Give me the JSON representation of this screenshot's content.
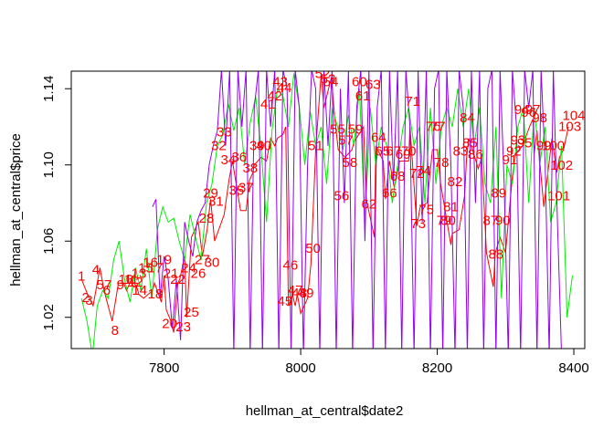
{
  "chart_data": {
    "type": "line",
    "xlabel": "hellman_at_central$date2",
    "ylabel": "hellman_at_central$price",
    "xlim": [
      7664,
      8416
    ],
    "ylim": [
      1.0036,
      1.1492
    ],
    "x_ticks": [
      7800,
      8000,
      8200,
      8400
    ],
    "y_ticks": [
      1.02,
      1.06,
      1.1,
      1.14
    ],
    "y_tick_labels": [
      "1.02",
      "1.06",
      "1.10",
      "1.14"
    ],
    "grid": false,
    "legend": "none",
    "series": [
      {
        "color": "#ff0000",
        "x": [
          7679,
          7688,
          7696,
          7706,
          7712,
          7724,
          7733,
          7741,
          7745,
          7752,
          7760,
          7763,
          7770,
          7783,
          7786,
          7796,
          7800,
          7803,
          7810,
          7814,
          7820,
          7823,
          7830,
          7833,
          7840,
          7850,
          7856,
          7863,
          7868,
          7874,
          7888,
          7895,
          7900,
          7912,
          7920,
          7925,
          7930,
          7932,
          7942,
          7950,
          7956,
          7962,
          7966,
          7974,
          7978,
          7982,
          7988,
          7992,
          7995,
          8000,
          8010,
          8015,
          8022,
          8030,
          8034,
          8045,
          8050,
          8055,
          8065,
          8075,
          8078,
          8092,
          8096,
          8108,
          8110,
          8121,
          8124,
          8130,
          8137,
          8145,
          8158,
          8160,
          8170,
          8175,
          8185,
          8193,
          8200,
          8205,
          8220,
          8222,
          8232,
          8240,
          8243,
          8246,
          8255,
          8260,
          8265,
          8272,
          8282,
          8285,
          8292,
          8300,
          8310,
          8315,
          8320,
          8325,
          8335,
          8340,
          8342,
          8346,
          8356,
          8368,
          8375,
          8379,
          8385,
          8392
        ],
        "values": [
          1.04,
          1.032,
          1.026,
          1.046,
          1.034,
          1.018,
          1.038,
          1.038,
          1.034,
          1.04,
          1.036,
          1.032,
          1.03,
          1.034,
          1.038,
          1.028,
          1.042,
          1.024,
          1.018,
          1.012,
          1.038,
          1.04,
          1.052,
          1.02,
          1.062,
          1.07,
          1.052,
          1.066,
          1.082,
          1.06,
          1.074,
          1.092,
          1.102,
          1.076,
          1.076,
          1.092,
          1.096,
          1.1,
          1.104,
          1.102,
          1.114,
          1.11,
          1.114,
          1.116,
          1.12,
          1.026,
          1.032,
          1.026,
          1.032,
          1.022,
          1.03,
          1.048,
          1.108,
          1.148,
          1.13,
          1.146,
          1.124,
          1.108,
          1.104,
          1.108,
          1.112,
          1.12,
          1.082,
          1.062,
          1.11,
          1.102,
          1.082,
          1.102,
          1.088,
          1.102,
          1.102,
          1.12,
          1.068,
          1.078,
          1.08,
          1.108,
          1.108,
          1.09,
          1.058,
          1.064,
          1.066,
          1.084,
          1.104,
          1.114,
          1.104,
          1.098,
          1.104,
          1.054,
          1.036,
          1.054,
          1.062,
          1.054,
          1.094,
          1.106,
          1.108,
          1.11,
          1.12,
          1.124,
          1.106,
          1.118,
          1.078,
          1.114,
          1.096,
          1.104,
          1.108,
          1.12
        ]
      },
      {
        "color": "#00ee00",
        "x": [
          7679,
          7687,
          7695,
          7702,
          7710,
          7718,
          7726,
          7734,
          7742,
          7750,
          7758,
          7766,
          7774,
          7782,
          7790,
          7798,
          7806,
          7814,
          7822,
          7830,
          7838,
          7846,
          7854,
          7862,
          7870,
          7878,
          7886,
          7894,
          7902,
          7910,
          7918,
          7926,
          7934,
          7942,
          7950,
          7958,
          7966,
          7974,
          7982,
          7990,
          7998,
          8006,
          8014,
          8022,
          8030,
          8038,
          8046,
          8054,
          8062,
          8070,
          8078,
          8086,
          8094,
          8102,
          8110,
          8118,
          8126,
          8134,
          8142,
          8150,
          8158,
          8166,
          8174,
          8182,
          8190,
          8198,
          8206,
          8214,
          8222,
          8230,
          8238,
          8246,
          8254,
          8262,
          8270,
          8278,
          8286,
          8294,
          8302,
          8310,
          8318,
          8326,
          8334,
          8342,
          8350,
          8358,
          8366,
          8374,
          8382,
          8390,
          8398
        ],
        "values": [
          1.03,
          1.018,
          1.0,
          1.026,
          1.034,
          1.03,
          1.05,
          1.06,
          1.04,
          1.028,
          1.046,
          1.034,
          1.056,
          1.03,
          1.066,
          1.078,
          1.07,
          1.072,
          1.06,
          1.05,
          1.074,
          1.062,
          1.05,
          1.08,
          1.09,
          1.11,
          1.116,
          1.132,
          1.118,
          1.13,
          1.1,
          1.122,
          1.136,
          1.108,
          1.07,
          1.118,
          1.14,
          1.136,
          1.12,
          1.148,
          1.13,
          1.1,
          1.128,
          1.11,
          1.12,
          1.09,
          1.13,
          1.12,
          1.108,
          1.126,
          1.11,
          1.14,
          1.07,
          1.13,
          1.1,
          1.12,
          1.11,
          1.08,
          1.1,
          1.12,
          1.13,
          1.11,
          1.12,
          1.08,
          1.13,
          1.09,
          1.12,
          1.13,
          1.12,
          1.14,
          1.12,
          1.14,
          1.11,
          1.13,
          1.09,
          1.08,
          1.12,
          1.03,
          1.1,
          1.09,
          1.12,
          1.13,
          1.08,
          1.13,
          1.1,
          1.12,
          1.07,
          1.08,
          1.11,
          1.02,
          1.042
        ]
      },
      {
        "color": "#9400f0",
        "x": [
          7783,
          7788,
          7794,
          7800,
          7806,
          7812,
          7818,
          7824,
          7830,
          7836,
          7842,
          7848,
          7854,
          7860,
          7866,
          7872,
          7878,
          7884,
          7890,
          7896,
          7902,
          7908,
          7914,
          7920,
          7926,
          7932,
          7938,
          7944,
          7950,
          7956,
          7962,
          7968,
          7974,
          7980,
          7986,
          7992,
          7998,
          8004,
          8010,
          8016,
          8022,
          8028,
          8034,
          8040,
          8046,
          8052,
          8058,
          8064,
          8070,
          8076,
          8082,
          8088,
          8094,
          8100,
          8106,
          8112,
          8118,
          8124,
          8130,
          8136,
          8142,
          8148,
          8154,
          8160,
          8166,
          8172,
          8178,
          8184,
          8190,
          8196,
          8202,
          8208,
          8214,
          8220,
          8226,
          8232,
          8238,
          8244,
          8250,
          8256,
          8262,
          8268,
          8274,
          8280,
          8286,
          8292,
          8298,
          8304,
          8310,
          8316,
          8322,
          8328,
          8334,
          8340,
          8346,
          8352,
          8358,
          8364,
          8370,
          8376,
          8382
        ],
        "values": [
          1.078,
          1.082,
          1.03,
          1.052,
          1.04,
          1.014,
          1.04,
          1.008,
          1.07,
          1.06,
          1.052,
          1.07,
          1.076,
          1.08,
          1.1,
          1.11,
          1.118,
          1.15,
          1.11,
          1.15,
          1.0,
          1.15,
          1.12,
          1.15,
          1.0,
          1.13,
          1.15,
          1.0,
          1.15,
          1.12,
          1.15,
          1.0,
          1.15,
          1.14,
          1.0,
          1.15,
          1.13,
          1.0,
          1.1,
          1.15,
          1.14,
          1.0,
          1.15,
          1.11,
          1.15,
          1.0,
          1.14,
          1.08,
          1.15,
          1.0,
          1.13,
          1.15,
          1.06,
          1.15,
          1.0,
          1.13,
          1.15,
          1.0,
          1.15,
          1.09,
          1.15,
          1.0,
          1.15,
          1.12,
          1.0,
          1.15,
          1.07,
          1.15,
          1.0,
          1.14,
          1.15,
          1.0,
          1.15,
          1.1,
          1.0,
          1.15,
          1.13,
          1.0,
          1.15,
          1.08,
          1.15,
          1.0,
          1.14,
          1.15,
          1.0,
          1.15,
          1.09,
          1.0,
          1.15,
          1.12,
          1.0,
          1.15,
          1.13,
          1.15,
          1.0,
          1.15,
          1.1,
          1.0,
          1.15,
          1.07,
          1.0
        ]
      }
    ],
    "point_labels": [
      {
        "text": "1",
        "x": 7679,
        "y": 1.0412
      },
      {
        "text": "2",
        "x": 7685,
        "y": 1.03
      },
      {
        "text": "3",
        "x": 7690,
        "y": 1.0285
      },
      {
        "text": "4",
        "x": 7700,
        "y": 1.0445
      },
      {
        "text": "57",
        "x": 7712,
        "y": 1.0367
      },
      {
        "text": "6",
        "x": 7716,
        "y": 1.0338
      },
      {
        "text": "8",
        "x": 7728,
        "y": 1.0126
      },
      {
        "text": "9",
        "x": 7736,
        "y": 1.0367
      },
      {
        "text": "10",
        "x": 7744,
        "y": 1.0396
      },
      {
        "text": "11",
        "x": 7752,
        "y": 1.0396
      },
      {
        "text": "12",
        "x": 7758,
        "y": 1.0382
      },
      {
        "text": "13",
        "x": 7763,
        "y": 1.0426
      },
      {
        "text": "14",
        "x": 7764,
        "y": 1.0338
      },
      {
        "text": "15",
        "x": 7773,
        "y": 1.0455
      },
      {
        "text": "16",
        "x": 7780,
        "y": 1.0484
      },
      {
        "text": "17",
        "x": 7787,
        "y": 1.0455
      },
      {
        "text": "18",
        "x": 7787,
        "y": 1.0319
      },
      {
        "text": "19",
        "x": 7800,
        "y": 1.0499
      },
      {
        "text": "20",
        "x": 7808,
        "y": 1.0164
      },
      {
        "text": "21",
        "x": 7810,
        "y": 1.0426
      },
      {
        "text": "22",
        "x": 7820,
        "y": 1.0396
      },
      {
        "text": "23",
        "x": 7828,
        "y": 1.0145
      },
      {
        "text": "24",
        "x": 7836,
        "y": 1.0455
      },
      {
        "text": "25",
        "x": 7840,
        "y": 1.0222
      },
      {
        "text": "26",
        "x": 7850,
        "y": 1.0426
      },
      {
        "text": "27",
        "x": 7856,
        "y": 1.0499
      },
      {
        "text": "28",
        "x": 7862,
        "y": 1.0717
      },
      {
        "text": "29",
        "x": 7868,
        "y": 1.0848
      },
      {
        "text": "30",
        "x": 7870,
        "y": 1.0484
      },
      {
        "text": "31",
        "x": 7876,
        "y": 1.0805
      },
      {
        "text": "32",
        "x": 7880,
        "y": 1.1096
      },
      {
        "text": "33",
        "x": 7888,
        "y": 1.1169
      },
      {
        "text": "34",
        "x": 7894,
        "y": 1.1023
      },
      {
        "text": "35",
        "x": 7906,
        "y": 1.0863
      },
      {
        "text": "36",
        "x": 7910,
        "y": 1.1038
      },
      {
        "text": "37",
        "x": 7920,
        "y": 1.0877
      },
      {
        "text": "38",
        "x": 7926,
        "y": 1.0979
      },
      {
        "text": "39",
        "x": 7936,
        "y": 1.1096
      },
      {
        "text": "40",
        "x": 7946,
        "y": 1.1096
      },
      {
        "text": "41",
        "x": 7952,
        "y": 1.1315
      },
      {
        "text": "42",
        "x": 7962,
        "y": 1.1358
      },
      {
        "text": "43",
        "x": 7970,
        "y": 1.1431
      },
      {
        "text": "44",
        "x": 7976,
        "y": 1.1402
      },
      {
        "text": "45",
        "x": 7977,
        "y": 1.028
      },
      {
        "text": "46",
        "x": 7985,
        "y": 1.047
      },
      {
        "text": "47",
        "x": 7992,
        "y": 1.0338
      },
      {
        "text": "48",
        "x": 7998,
        "y": 1.0324
      },
      {
        "text": "49",
        "x": 8008,
        "y": 1.0324
      },
      {
        "text": "50",
        "x": 8018,
        "y": 1.0557
      },
      {
        "text": "51",
        "x": 8022,
        "y": 1.1096
      },
      {
        "text": "52",
        "x": 8032,
        "y": 1.1475
      },
      {
        "text": "53",
        "x": 8040,
        "y": 1.1446
      },
      {
        "text": "54",
        "x": 8044,
        "y": 1.1431
      },
      {
        "text": "55",
        "x": 8054,
        "y": 1.1184
      },
      {
        "text": "56",
        "x": 8060,
        "y": 1.0834
      },
      {
        "text": "57",
        "x": 8066,
        "y": 1.1125
      },
      {
        "text": "58",
        "x": 8072,
        "y": 1.1008
      },
      {
        "text": "59",
        "x": 8080,
        "y": 1.1184
      },
      {
        "text": "60",
        "x": 8086,
        "y": 1.1431
      },
      {
        "text": "61",
        "x": 8091,
        "y": 1.1358
      },
      {
        "text": "62",
        "x": 8100,
        "y": 1.079
      },
      {
        "text": "63",
        "x": 8106,
        "y": 1.1417
      },
      {
        "text": "64",
        "x": 8114,
        "y": 1.114
      },
      {
        "text": "65",
        "x": 8120,
        "y": 1.1067
      },
      {
        "text": "66",
        "x": 8130,
        "y": 1.0848
      },
      {
        "text": "67",
        "x": 8136,
        "y": 1.1067
      },
      {
        "text": "68",
        "x": 8142,
        "y": 1.0936
      },
      {
        "text": "69",
        "x": 8150,
        "y": 1.1052
      },
      {
        "text": "70",
        "x": 8158,
        "y": 1.1067
      },
      {
        "text": "71",
        "x": 8164,
        "y": 1.1329
      },
      {
        "text": "72",
        "x": 8170,
        "y": 1.095
      },
      {
        "text": "73",
        "x": 8172,
        "y": 1.0688
      },
      {
        "text": "74",
        "x": 8180,
        "y": 1.0965
      },
      {
        "text": "75",
        "x": 8184,
        "y": 1.0761
      },
      {
        "text": "76",
        "x": 8194,
        "y": 1.1198
      },
      {
        "text": "77",
        "x": 8201,
        "y": 1.1198
      },
      {
        "text": "78",
        "x": 8206,
        "y": 1.1008
      },
      {
        "text": "79",
        "x": 8210,
        "y": 1.0703
      },
      {
        "text": "80",
        "x": 8216,
        "y": 1.0703
      },
      {
        "text": "81",
        "x": 8220,
        "y": 1.0776
      },
      {
        "text": "82",
        "x": 8226,
        "y": 1.0907
      },
      {
        "text": "83",
        "x": 8234,
        "y": 1.1067
      },
      {
        "text": "84",
        "x": 8244,
        "y": 1.1242
      },
      {
        "text": "85",
        "x": 8248,
        "y": 1.1111
      },
      {
        "text": "86",
        "x": 8256,
        "y": 1.1052
      },
      {
        "text": "87",
        "x": 8278,
        "y": 1.0703
      },
      {
        "text": "88",
        "x": 8286,
        "y": 1.0528
      },
      {
        "text": "89",
        "x": 8290,
        "y": 1.0848
      },
      {
        "text": "90",
        "x": 8296,
        "y": 1.0703
      },
      {
        "text": "91",
        "x": 8306,
        "y": 1.1023
      },
      {
        "text": "92",
        "x": 8312,
        "y": 1.1067
      },
      {
        "text": "93",
        "x": 8318,
        "y": 1.1125
      },
      {
        "text": "94",
        "x": 8324,
        "y": 1.1286
      },
      {
        "text": "95",
        "x": 8328,
        "y": 1.1111
      },
      {
        "text": "96",
        "x": 8334,
        "y": 1.1271
      },
      {
        "text": "97",
        "x": 8340,
        "y": 1.1286
      },
      {
        "text": "98",
        "x": 8350,
        "y": 1.1242
      },
      {
        "text": "99",
        "x": 8356,
        "y": 1.1096
      },
      {
        "text": "100",
        "x": 8370,
        "y": 1.1096
      },
      {
        "text": "101",
        "x": 8378,
        "y": 1.0834
      },
      {
        "text": "102",
        "x": 8382,
        "y": 1.0994
      },
      {
        "text": "103",
        "x": 8394,
        "y": 1.1198
      },
      {
        "text": "104",
        "x": 8400,
        "y": 1.1256
      }
    ]
  },
  "colors": {
    "label_color": "#ff0000",
    "axis_color": "#000000"
  }
}
